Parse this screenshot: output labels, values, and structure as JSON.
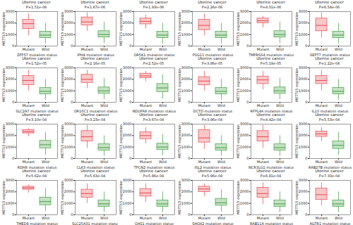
{
  "chart_data": [
    {
      "type": "box",
      "title": "Uterine cancer",
      "subtitle": "P=1.51e-06",
      "x_label": "ZFP57 mutation status",
      "y_label": "METTL5 expression",
      "categories": [
        "Mutant",
        "Wild"
      ],
      "colors": [
        "#e8474c",
        "#3f9e3f"
      ],
      "ylim": [
        0,
        3000
      ],
      "yticks": [
        0,
        1000,
        2000,
        3000
      ],
      "boxes": [
        {
          "min": 900,
          "q1": 1500,
          "median": 1950,
          "q3": 2300,
          "max": 2800
        },
        {
          "min": 200,
          "q1": 700,
          "median": 950,
          "q3": 1250,
          "max": 2000
        }
      ]
    },
    {
      "type": "box",
      "title": "Uterine cancer",
      "subtitle": "P=1.67e-06",
      "x_label": "JPH4 mutation status",
      "y_label": "METTL5 expression",
      "categories": [
        "Mutant",
        "Wild"
      ],
      "colors": [
        "#e8474c",
        "#3f9e3f"
      ],
      "ylim": [
        0,
        3000
      ],
      "yticks": [
        0,
        1000,
        2000,
        3000
      ],
      "boxes": [
        {
          "min": 1300,
          "q1": 1800,
          "median": 2100,
          "q3": 2500,
          "max": 2900
        },
        {
          "min": 250,
          "q1": 750,
          "median": 1000,
          "q3": 1300,
          "max": 2100
        }
      ]
    },
    {
      "type": "box",
      "title": "Uterine cancer",
      "subtitle": "P=1.93e-06",
      "x_label": "OR5K1 mutation status",
      "y_label": "METTL5 expression",
      "categories": [
        "Mutant",
        "Wild"
      ],
      "colors": [
        "#e8474c",
        "#3f9e3f"
      ],
      "ylim": [
        0,
        3000
      ],
      "yticks": [
        0,
        1000,
        2000,
        3000
      ],
      "boxes": [
        {
          "min": 1500,
          "q1": 1900,
          "median": 2150,
          "q3": 2400,
          "max": 2700
        },
        {
          "min": 200,
          "q1": 700,
          "median": 950,
          "q3": 1250,
          "max": 2000
        }
      ]
    },
    {
      "type": "box",
      "title": "Uterine cancer",
      "subtitle": "P=2.26e-06",
      "x_label": "PSG11 mutation status",
      "y_label": "METTL5 expression",
      "categories": [
        "Mutant",
        "Wild"
      ],
      "colors": [
        "#e8474c",
        "#3f9e3f"
      ],
      "ylim": [
        0,
        3000
      ],
      "yticks": [
        0,
        1000,
        2000,
        3000
      ],
      "boxes": [
        {
          "min": 900,
          "q1": 1400,
          "median": 1800,
          "q3": 2300,
          "max": 2800
        },
        {
          "min": 200,
          "q1": 700,
          "median": 950,
          "q3": 1250,
          "max": 2000
        }
      ]
    },
    {
      "type": "box",
      "title": "Uterine cancer",
      "subtitle": "P=4.01e-06",
      "x_label": "TMPRSS4 mutation status",
      "y_label": "METTL5 expression",
      "categories": [
        "Mutant",
        "Wild"
      ],
      "colors": [
        "#e8474c",
        "#3f9e3f"
      ],
      "ylim": [
        0,
        3000
      ],
      "yticks": [
        0,
        1000,
        2000,
        3000
      ],
      "boxes": [
        {
          "min": 1600,
          "q1": 2000,
          "median": 2200,
          "q3": 2400,
          "max": 2600
        },
        {
          "min": 250,
          "q1": 750,
          "median": 1000,
          "q3": 1300,
          "max": 2100
        }
      ]
    },
    {
      "type": "box",
      "title": "Uterine cancer",
      "subtitle": "P=6.54e-06",
      "x_label": "SEPT7 mutation status",
      "y_label": "METTL5 expression",
      "categories": [
        "Mutant",
        "Wild"
      ],
      "colors": [
        "#e8474c",
        "#3f9e3f"
      ],
      "ylim": [
        0,
        3000
      ],
      "yticks": [
        0,
        1000,
        2000,
        3000
      ],
      "boxes": [
        {
          "min": 700,
          "q1": 1300,
          "median": 1800,
          "q3": 2400,
          "max": 2900
        },
        {
          "min": 200,
          "q1": 700,
          "median": 950,
          "q3": 1250,
          "max": 2000
        }
      ]
    },
    {
      "type": "box",
      "title": "Uterine cancer",
      "subtitle": "P=1.52e-05",
      "x_label": "SLC2A7 mutation status",
      "y_label": "METTL5 expression",
      "categories": [
        "Mutant",
        "Wild"
      ],
      "colors": [
        "#e8474c",
        "#3f9e3f"
      ],
      "ylim": [
        0,
        3000
      ],
      "yticks": [
        0,
        1000,
        2000,
        3000
      ],
      "boxes": [
        {
          "min": 1000,
          "q1": 1500,
          "median": 1900,
          "q3": 2300,
          "max": 2800
        },
        {
          "min": 200,
          "q1": 700,
          "median": 950,
          "q3": 1250,
          "max": 2000
        }
      ]
    },
    {
      "type": "box",
      "title": "Uterine cancer",
      "subtitle": "P=2.16e-05",
      "x_label": "OR10C1 mutation status",
      "y_label": "METTL5 expression",
      "categories": [
        "Mutant",
        "Wild"
      ],
      "colors": [
        "#e8474c",
        "#3f9e3f"
      ],
      "ylim": [
        0,
        3000
      ],
      "yticks": [
        0,
        1000,
        2000,
        3000
      ],
      "boxes": [
        {
          "min": 1200,
          "q1": 1700,
          "median": 2000,
          "q3": 2400,
          "max": 2800
        },
        {
          "min": 250,
          "q1": 750,
          "median": 1000,
          "q3": 1300,
          "max": 2100
        }
      ]
    },
    {
      "type": "box",
      "title": "Uterine cancer",
      "subtitle": "P=2.52e-05",
      "x_label": "NDUFA9 mutation status",
      "y_label": "METTL5 expression",
      "categories": [
        "Mutant",
        "Wild"
      ],
      "colors": [
        "#e8474c",
        "#3f9e3f"
      ],
      "ylim": [
        0,
        3000
      ],
      "yticks": [
        0,
        1000,
        2000,
        3000
      ],
      "boxes": [
        {
          "min": 1800,
          "q1": 2100,
          "median": 2300,
          "q3": 2500,
          "max": 2700
        },
        {
          "min": 300,
          "q1": 900,
          "median": 1250,
          "q3": 1600,
          "max": 2400
        }
      ]
    },
    {
      "type": "box",
      "title": "Uterine cancer",
      "subtitle": "P=3.86e-05",
      "x_label": "DCTD mutation status",
      "y_label": "METTL5 expression",
      "categories": [
        "Mutant",
        "Wild"
      ],
      "colors": [
        "#e8474c",
        "#3f9e3f"
      ],
      "ylim": [
        0,
        3000
      ],
      "yticks": [
        0,
        1000,
        2000,
        3000
      ],
      "boxes": [
        {
          "min": 1000,
          "q1": 1500,
          "median": 1850,
          "q3": 2200,
          "max": 2700
        },
        {
          "min": 200,
          "q1": 700,
          "median": 950,
          "q3": 1250,
          "max": 2000
        }
      ]
    },
    {
      "type": "box",
      "title": "Uterine cancer",
      "subtitle": "P=5.19e-05",
      "x_label": "RFPL4A mutation status",
      "y_label": "METTL5 expression",
      "categories": [
        "Mutant",
        "Wild"
      ],
      "colors": [
        "#e8474c",
        "#3f9e3f"
      ],
      "ylim": [
        0,
        3000
      ],
      "yticks": [
        0,
        1000,
        2000,
        3000
      ],
      "boxes": [
        {
          "min": 1100,
          "q1": 1600,
          "median": 1950,
          "q3": 2250,
          "max": 2700
        },
        {
          "min": 250,
          "q1": 750,
          "median": 1000,
          "q3": 1300,
          "max": 2100
        }
      ]
    },
    {
      "type": "box",
      "title": "Uterine cancer",
      "subtitle": "P=1.22e-04",
      "x_label": "IL10 mutation status",
      "y_label": "METTL5 expression",
      "categories": [
        "Mutant",
        "Wild"
      ],
      "colors": [
        "#e8474c",
        "#3f9e3f"
      ],
      "ylim": [
        0,
        3000
      ],
      "yticks": [
        0,
        1000,
        2000,
        3000
      ],
      "boxes": [
        {
          "min": 1000,
          "q1": 1600,
          "median": 1900,
          "q3": 2300,
          "max": 2800
        },
        {
          "min": 200,
          "q1": 700,
          "median": 950,
          "q3": 1250,
          "max": 2000
        }
      ]
    },
    {
      "type": "box",
      "title": "Uterine cancer",
      "subtitle": "P=3.10e-04",
      "x_label": "RDH8 mutation status",
      "y_label": "METTL5 expression",
      "categories": [
        "Mutant",
        "Wild"
      ],
      "colors": [
        "#e8474c",
        "#3f9e3f"
      ],
      "ylim": [
        0,
        3000
      ],
      "yticks": [
        0,
        1000,
        2000,
        3000
      ],
      "boxes": [
        {
          "min": 1900,
          "q1": 2200,
          "median": 2350,
          "q3": 2500,
          "max": 2600
        },
        {
          "min": 300,
          "q1": 900,
          "median": 1200,
          "q3": 1550,
          "max": 2300
        }
      ]
    },
    {
      "type": "box",
      "title": "Uterine cancer",
      "subtitle": "P=3.23e-04",
      "x_label": "CLK3 mutation status",
      "y_label": "METTL5 expression",
      "categories": [
        "Mutant",
        "Wild"
      ],
      "colors": [
        "#e8474c",
        "#3f9e3f"
      ],
      "ylim": [
        0,
        3000
      ],
      "yticks": [
        0,
        1000,
        2000,
        3000
      ],
      "boxes": [
        {
          "min": 900,
          "q1": 1500,
          "median": 1900,
          "q3": 2400,
          "max": 2900
        },
        {
          "min": 200,
          "q1": 700,
          "median": 950,
          "q3": 1250,
          "max": 2000
        }
      ]
    },
    {
      "type": "box",
      "title": "Uterine cancer",
      "subtitle": "P=3.67e-04",
      "x_label": "TPCN2 mutation status",
      "y_label": "METTL5 expression",
      "categories": [
        "Mutant",
        "Wild"
      ],
      "colors": [
        "#e8474c",
        "#3f9e3f"
      ],
      "ylim": [
        0,
        3000
      ],
      "yticks": [
        0,
        1000,
        2000,
        3000
      ],
      "boxes": [
        {
          "min": 1300,
          "q1": 1700,
          "median": 2000,
          "q3": 2300,
          "max": 2700
        },
        {
          "min": 250,
          "q1": 750,
          "median": 1000,
          "q3": 1300,
          "max": 2100
        }
      ]
    },
    {
      "type": "box",
      "title": "Uterine cancer",
      "subtitle": "P=3.96e-04",
      "x_label": "ISL2 mutation status",
      "y_label": "METTL5 expression",
      "categories": [
        "Mutant",
        "Wild"
      ],
      "colors": [
        "#e8474c",
        "#3f9e3f"
      ],
      "ylim": [
        0,
        3000
      ],
      "yticks": [
        0,
        1000,
        2000,
        3000
      ],
      "boxes": [
        {
          "min": 800,
          "q1": 1400,
          "median": 1800,
          "q3": 2500,
          "max": 2900
        },
        {
          "min": 200,
          "q1": 700,
          "median": 950,
          "q3": 1250,
          "max": 2000
        }
      ]
    },
    {
      "type": "box",
      "title": "Uterine cancer",
      "subtitle": "P=4.42e-04",
      "x_label": "NCR3LG1 mutation status",
      "y_label": "METTL5 expression",
      "categories": [
        "Mutant",
        "Wild"
      ],
      "colors": [
        "#e8474c",
        "#3f9e3f"
      ],
      "ylim": [
        0,
        3000
      ],
      "yticks": [
        0,
        1000,
        2000,
        3000
      ],
      "boxes": [
        {
          "min": 900,
          "q1": 1500,
          "median": 1900,
          "q3": 2400,
          "max": 2900
        },
        {
          "min": 200,
          "q1": 700,
          "median": 950,
          "q3": 1250,
          "max": 2000
        }
      ]
    },
    {
      "type": "box",
      "title": "Uterine cancer",
      "subtitle": "P=5.53e-04",
      "x_label": "RAB27B mutation status",
      "y_label": "METTL5 expression",
      "categories": [
        "Mutant",
        "Wild"
      ],
      "colors": [
        "#e8474c",
        "#3f9e3f"
      ],
      "ylim": [
        0,
        3000
      ],
      "yticks": [
        0,
        1000,
        2000,
        3000
      ],
      "boxes": [
        {
          "min": 1500,
          "q1": 1900,
          "median": 2150,
          "q3": 2350,
          "max": 2700
        },
        {
          "min": 300,
          "q1": 850,
          "median": 1150,
          "q3": 1500,
          "max": 2300
        }
      ]
    },
    {
      "type": "box",
      "title": "Uterine cancer",
      "subtitle": "P=5.62e-04",
      "x_label": "TMED9 mutation status",
      "y_label": "METTL5 expression",
      "categories": [
        "Mutant",
        "Wild"
      ],
      "colors": [
        "#e8474c",
        "#3f9e3f"
      ],
      "ylim": [
        0,
        3000
      ],
      "yticks": [
        0,
        1000,
        2000,
        3000
      ],
      "boxes": [
        {
          "min": 1900,
          "q1": 2200,
          "median": 2350,
          "q3": 2450,
          "max": 2600
        },
        {
          "min": 300,
          "q1": 850,
          "median": 1150,
          "q3": 1500,
          "max": 2300
        }
      ]
    },
    {
      "type": "box",
      "title": "Uterine cancer",
      "subtitle": "P=5.63e-04",
      "x_label": "SLC25A31 mutation status",
      "y_label": "METTL5 expression",
      "categories": [
        "Mutant",
        "Wild"
      ],
      "colors": [
        "#e8474c",
        "#3f9e3f"
      ],
      "ylim": [
        0,
        3000
      ],
      "yticks": [
        0,
        1000,
        2000,
        3000
      ],
      "boxes": [
        {
          "min": 1000,
          "q1": 1500,
          "median": 1850,
          "q3": 2200,
          "max": 2700
        },
        {
          "min": 200,
          "q1": 700,
          "median": 950,
          "q3": 1250,
          "max": 2000
        }
      ]
    },
    {
      "type": "box",
      "title": "Uterine cancer",
      "subtitle": "P=5.86e-04",
      "x_label": "OAS1 mutation status",
      "y_label": "METTL5 expression",
      "categories": [
        "Mutant",
        "Wild"
      ],
      "colors": [
        "#e8474c",
        "#3f9e3f"
      ],
      "ylim": [
        0,
        3000
      ],
      "yticks": [
        0,
        1000,
        2000,
        3000
      ],
      "boxes": [
        {
          "min": 1100,
          "q1": 1600,
          "median": 1900,
          "q3": 2250,
          "max": 2700
        },
        {
          "min": 200,
          "q1": 700,
          "median": 950,
          "q3": 1250,
          "max": 2000
        }
      ]
    },
    {
      "type": "box",
      "title": "Uterine cancer",
      "subtitle": "P=5.96e-04",
      "x_label": "SHOX2 mutation status",
      "y_label": "METTL5 expression",
      "categories": [
        "Mutant",
        "Wild"
      ],
      "colors": [
        "#e8474c",
        "#3f9e3f"
      ],
      "ylim": [
        0,
        3000
      ],
      "yticks": [
        0,
        1000,
        2000,
        3000
      ],
      "boxes": [
        {
          "min": 1600,
          "q1": 2000,
          "median": 2250,
          "q3": 2450,
          "max": 2700
        },
        {
          "min": 250,
          "q1": 800,
          "median": 1050,
          "q3": 1400,
          "max": 2200
        }
      ]
    },
    {
      "type": "box",
      "title": "Uterine cancer",
      "subtitle": "P=6.81e-04",
      "x_label": "RAB11A mutation status",
      "y_label": "METTL5 expression",
      "categories": [
        "Mutant",
        "Wild"
      ],
      "colors": [
        "#e8474c",
        "#3f9e3f"
      ],
      "ylim": [
        0,
        3000
      ],
      "yticks": [
        0,
        1000,
        2000,
        3000
      ],
      "boxes": [
        {
          "min": 900,
          "q1": 1500,
          "median": 1850,
          "q3": 2350,
          "max": 2800
        },
        {
          "min": 200,
          "q1": 700,
          "median": 950,
          "q3": 1250,
          "max": 2000
        }
      ]
    },
    {
      "type": "box",
      "title": "Uterine cancer",
      "subtitle": "P=7.33e-04",
      "x_label": "AGTR1 mutation status",
      "y_label": "METTL5 expression",
      "categories": [
        "Mutant",
        "Wild"
      ],
      "colors": [
        "#e8474c",
        "#3f9e3f"
      ],
      "ylim": [
        0,
        3000
      ],
      "yticks": [
        0,
        1000,
        2000,
        3000
      ],
      "boxes": [
        {
          "min": 800,
          "q1": 1300,
          "median": 1750,
          "q3": 2300,
          "max": 2800
        },
        {
          "min": 200,
          "q1": 700,
          "median": 950,
          "q3": 1250,
          "max": 2000
        }
      ]
    }
  ]
}
